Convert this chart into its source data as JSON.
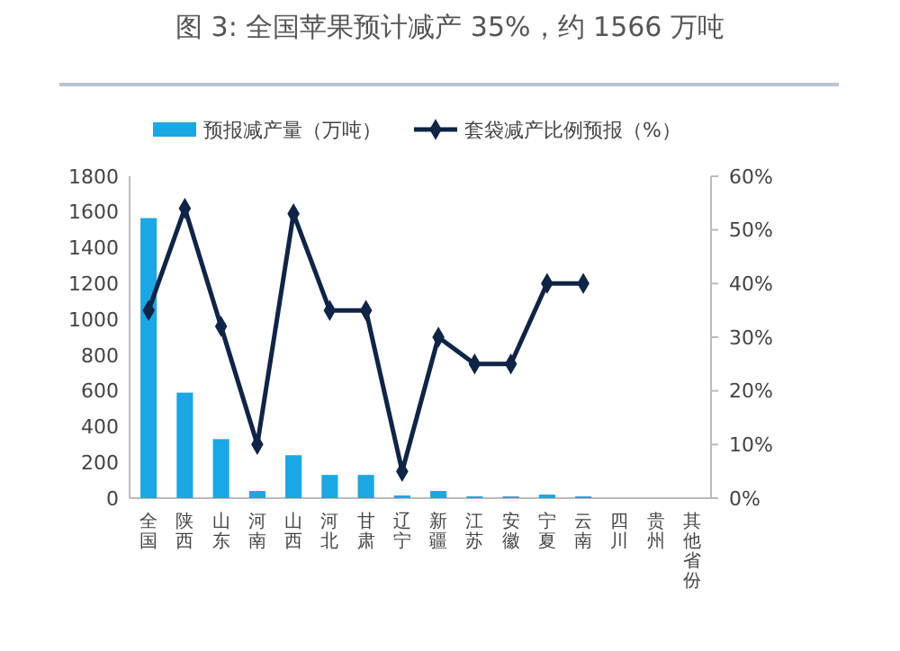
{
  "chart_data": {
    "type": "bar",
    "title": "图 3:   全国苹果预计减产 35%，约 1566 万吨",
    "categories": [
      "全国",
      "陕西",
      "山东",
      "河南",
      "山西",
      "河北",
      "甘肃",
      "辽宁",
      "新疆",
      "江苏",
      "安徽",
      "宁夏",
      "云南",
      "四川",
      "贵州",
      "其他省份"
    ],
    "series": [
      {
        "name": "预报减产量（万吨）",
        "color": "#1aa7e4",
        "values": [
          1566,
          590,
          330,
          40,
          240,
          130,
          130,
          15,
          40,
          10,
          10,
          20,
          10,
          0,
          0,
          0
        ]
      },
      {
        "name": "套袋减产比例预报（%）",
        "color": "#0f2446",
        "type": "line",
        "axis": "y2",
        "marker": "diamond",
        "values": [
          35,
          54,
          32,
          10,
          53,
          35,
          35,
          5,
          30,
          25,
          25,
          40,
          40,
          null,
          null,
          null
        ]
      }
    ],
    "ylim": [
      0,
      1800
    ],
    "yticks": [
      0,
      200,
      400,
      600,
      800,
      1000,
      1200,
      1400,
      1600,
      1800
    ],
    "y2lim": [
      0,
      60
    ],
    "y2ticks": [
      {
        "value": 0,
        "label": "0%"
      },
      {
        "value": 10,
        "label": "10%"
      },
      {
        "value": 20,
        "label": "20%"
      },
      {
        "value": 30,
        "label": "30%"
      },
      {
        "value": 40,
        "label": "40%"
      },
      {
        "value": 50,
        "label": "50%"
      },
      {
        "value": 60,
        "label": "60%"
      }
    ],
    "grid": false,
    "legend": "top"
  }
}
